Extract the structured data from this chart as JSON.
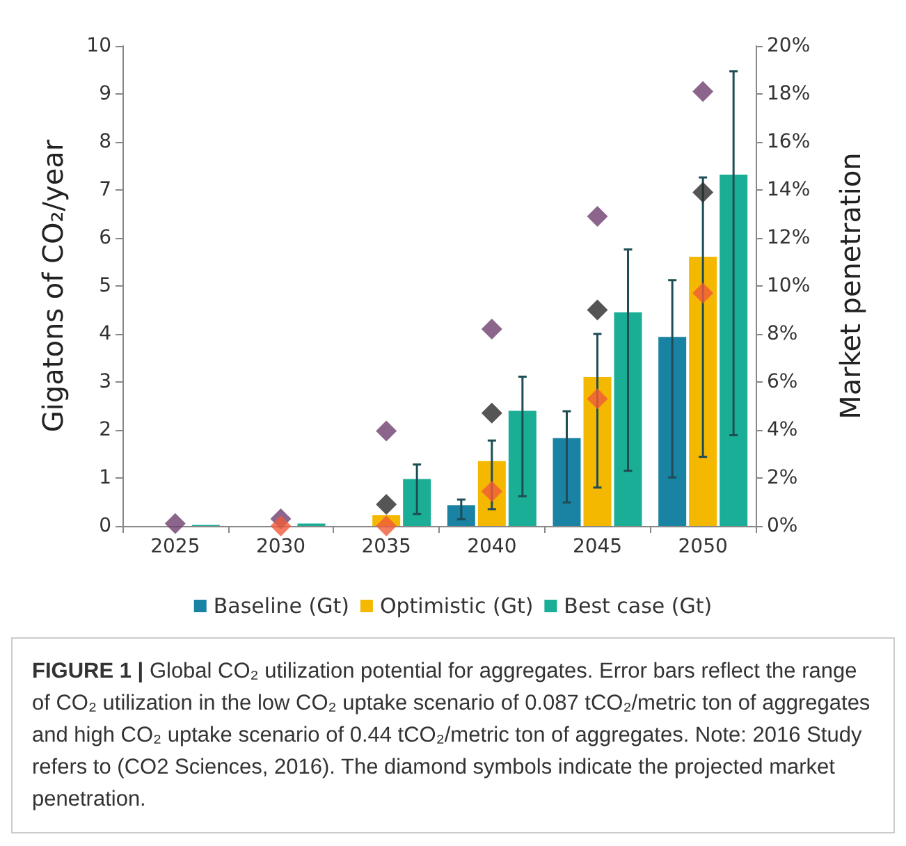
{
  "chart_data": {
    "type": "bar",
    "ylabel": "Gigatons of CO₂/year",
    "y2label": "Market penetration",
    "categories": [
      "2025",
      "2030",
      "2035",
      "2040",
      "2045",
      "2050"
    ],
    "ylim": [
      0,
      10
    ],
    "yticks": [
      0,
      1,
      2,
      3,
      4,
      5,
      6,
      7,
      8,
      9,
      10
    ],
    "y2lim": [
      0,
      20
    ],
    "y2ticks": [
      {
        "value": 0,
        "label": "0%"
      },
      {
        "value": 2,
        "label": "2%"
      },
      {
        "value": 4,
        "label": "4%"
      },
      {
        "value": 6,
        "label": "6%"
      },
      {
        "value": 8,
        "label": "8%"
      },
      {
        "value": 10,
        "label": "10%"
      },
      {
        "value": 12,
        "label": "12%"
      },
      {
        "value": 14,
        "label": "14%"
      },
      {
        "value": 16,
        "label": "16%"
      },
      {
        "value": 18,
        "label": "18%"
      },
      {
        "value": 20,
        "label": "20%"
      }
    ],
    "series": [
      {
        "name": "Baseline (Gt)",
        "color": "#1a82a3",
        "values": [
          0,
          0,
          0,
          0.43,
          1.83,
          3.94
        ],
        "errors": [
          null,
          null,
          null,
          [
            0.14,
            0.55
          ],
          [
            0.49,
            2.39
          ],
          [
            1.01,
            5.12
          ]
        ]
      },
      {
        "name": "Optimistic (Gt)",
        "color": "#f5b800",
        "values": [
          0,
          null,
          0.23,
          1.35,
          3.1,
          5.61
        ],
        "errors": [
          null,
          null,
          null,
          [
            0.35,
            1.78
          ],
          [
            0.8,
            4.0
          ],
          [
            1.44,
            7.26
          ]
        ]
      },
      {
        "name": "Best case (Gt)",
        "color": "#1aae96",
        "values": [
          0.02,
          0.05,
          0.98,
          2.4,
          4.45,
          7.32
        ],
        "errors": [
          null,
          null,
          [
            0.25,
            1.28
          ],
          [
            0.62,
            3.11
          ],
          [
            1.15,
            5.76
          ],
          [
            1.89,
            9.47
          ]
        ]
      },
      {
        "type": "scatter",
        "axis": "y2",
        "marker": "diamond",
        "color": "#6e3f6e",
        "values": [
          0.1,
          0.3,
          3.96,
          8.2,
          12.9,
          18.1
        ]
      },
      {
        "type": "scatter",
        "axis": "y2",
        "marker": "diamond",
        "color": "#2b2b2b",
        "values": [
          null,
          null,
          0.9,
          4.7,
          9.0,
          13.9
        ]
      },
      {
        "type": "scatter",
        "axis": "y2",
        "marker": "diamond",
        "color": "#f05a3a",
        "values": [
          null,
          0.0,
          0.0,
          1.44,
          5.3,
          9.7
        ]
      }
    ],
    "legend": "bottom",
    "grid": false,
    "annotations": [
      "FIGURE 1 |",
      "Global CO₂ utilization potential for aggregates. Error bars reflect the range of CO₂ utilization in the low CO₂ uptake scenario of 0.087 tCO₂/metric ton of aggregates and high CO₂ uptake scenario of 0.44 tCO₂/metric ton of aggregates. Note: 2016 Study refers to (CO2 Sciences, 2016). The diamond symbols indicate the projected market penetration."
    ]
  }
}
